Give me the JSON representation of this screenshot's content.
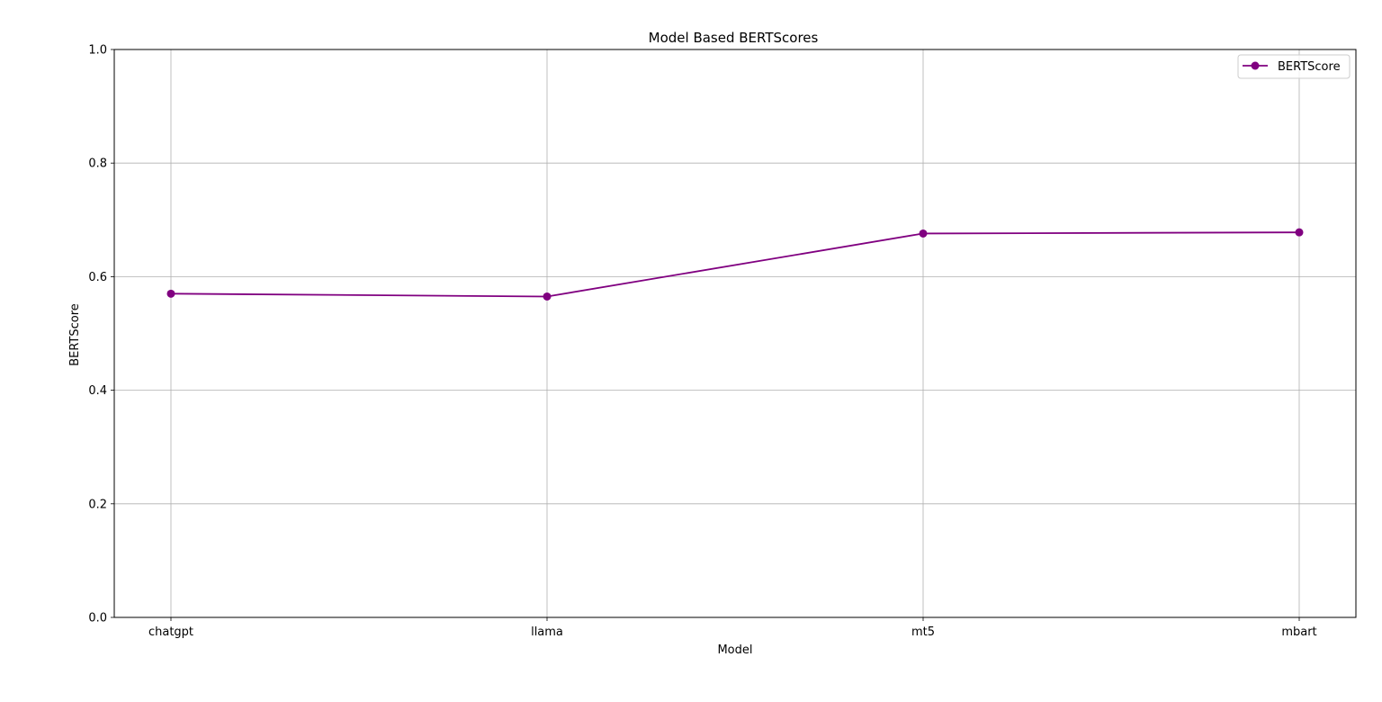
{
  "chart_data": {
    "type": "line",
    "title": "Model Based BERTScores",
    "xlabel": "Model",
    "ylabel": "BERTScore",
    "categories": [
      "chatgpt",
      "llama",
      "mt5",
      "mbart"
    ],
    "series": [
      {
        "name": "BERTScore",
        "values": [
          0.57,
          0.565,
          0.676,
          0.678
        ],
        "color": "#800080",
        "marker": "circle"
      }
    ],
    "ylim": [
      0.0,
      1.0
    ],
    "yticks": [
      0.0,
      0.2,
      0.4,
      0.6,
      0.8,
      1.0
    ],
    "ytick_labels": [
      "0.0",
      "0.2",
      "0.4",
      "0.6",
      "0.8",
      "1.0"
    ],
    "grid": true,
    "legend_position": "upper right"
  }
}
